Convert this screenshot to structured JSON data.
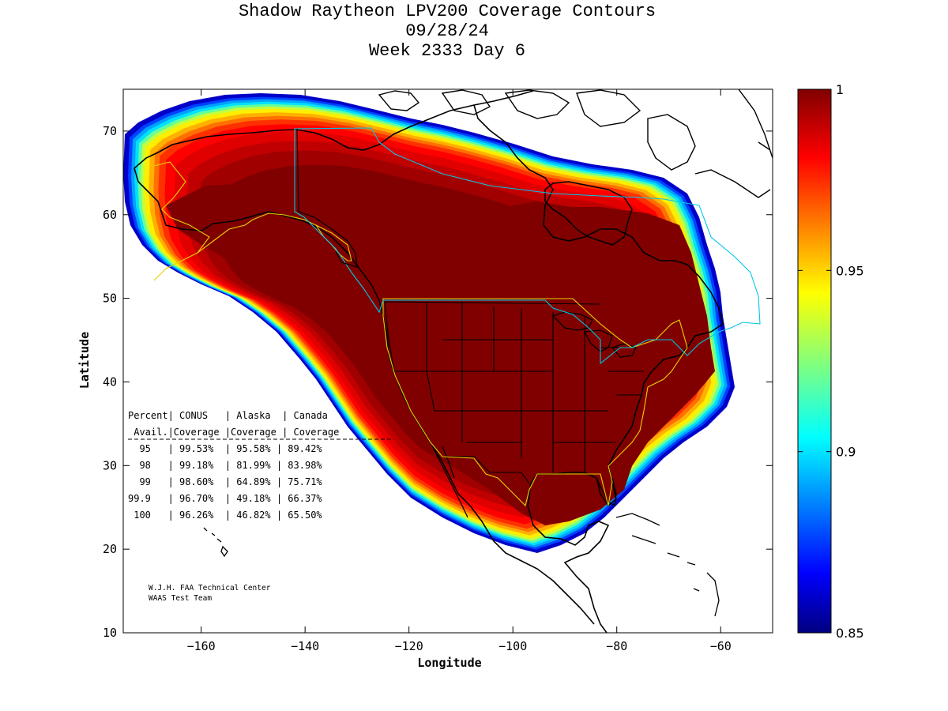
{
  "title": {
    "line1": "Shadow Raytheon LPV200 Coverage Contours",
    "line2": "09/28/24",
    "line3": "Week 2333 Day 6"
  },
  "axes": {
    "xlabel": "Longitude",
    "ylabel": "Latitude",
    "xlim": [
      -175,
      -50
    ],
    "ylim": [
      10,
      75
    ],
    "xticks": [
      -160,
      -140,
      -120,
      -100,
      -80,
      -60
    ],
    "yticks": [
      10,
      20,
      30,
      40,
      50,
      60,
      70
    ]
  },
  "colorbar": {
    "min": 0.85,
    "max": 1,
    "tick_labels": [
      "1",
      "0.95",
      "0.9",
      "0.85"
    ],
    "tick_values": [
      1,
      0.95,
      0.9,
      0.85
    ],
    "colormap": "jet"
  },
  "table": {
    "header1": "Percent| CONUS   | Alaska  | Canada",
    "header2": " Avail.|Coverage |Coverage | Coverage",
    "rows": [
      "  95   | 99.53%  | 95.58% | 89.42%",
      "  98   | 99.18%  | 81.99% | 83.98%",
      "  99   | 98.60%  | 64.89% | 75.71%",
      "99.9   | 96.70%  | 49.18% | 66.37%",
      " 100   | 96.26%  | 46.82% | 65.50%"
    ]
  },
  "credits": {
    "line1": "W.J.H. FAA Technical Center",
    "line2": "WAAS Test Team"
  },
  "colors": {
    "coverage_core": "#800000",
    "service_boundary": "#e6d200",
    "border_cyan": "#00c8e6",
    "coastline": "#000000"
  }
}
